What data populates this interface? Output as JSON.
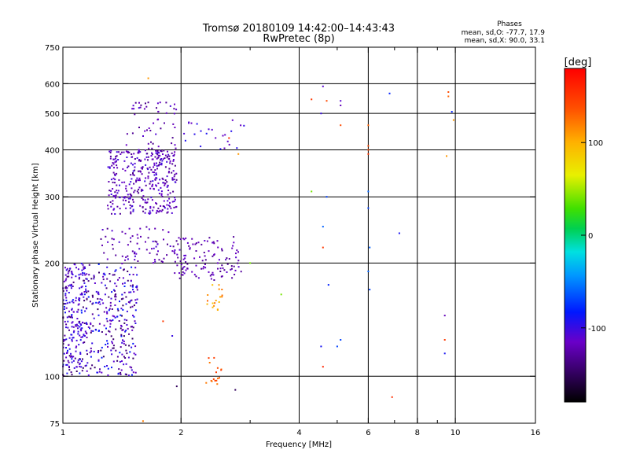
{
  "chart_data": {
    "type": "scatter",
    "title": "Tromsø 20180109 14:42:00–14:43:43",
    "subtitle": "RwPretec (8p)",
    "phases_title": "Phases",
    "phases_o": "mean, sd,O: -77.7, 17.9",
    "phases_x": "mean, sd,X:  90.0, 33.1",
    "xlabel": "Frequency [MHz]",
    "ylabel": "Stationary phase Virtual Height [km]",
    "x_scale": "log",
    "y_scale": "log",
    "xlim": [
      1,
      16
    ],
    "ylim": [
      75,
      750
    ],
    "x_ticks": [
      1,
      2,
      4,
      6,
      8,
      10,
      16
    ],
    "x_tick_labels": [
      "1",
      "2",
      "4",
      "6",
      "8",
      "10",
      "16"
    ],
    "x_minor_ticks": [
      3,
      5,
      7,
      9
    ],
    "x_grid": [
      2,
      4,
      6,
      8,
      10
    ],
    "y_ticks": [
      75,
      100,
      200,
      300,
      400,
      500,
      600,
      750
    ],
    "y_tick_labels": [
      "75",
      "100",
      "200",
      "300",
      "400",
      "500",
      "600",
      "750"
    ],
    "y_grid": [
      100,
      200,
      300,
      400,
      500,
      600
    ],
    "grid": true,
    "colorbar": {
      "label": "[deg]",
      "min": -180,
      "max": 180,
      "ticks": [
        100,
        0,
        -100
      ],
      "tick_labels": [
        "100",
        "0",
        "-100"
      ]
    },
    "clusters": [
      {
        "f": [
          1.0,
          1.55
        ],
        "h": [
          100,
          200
        ],
        "phase": [
          -150,
          -80
        ],
        "n": 420
      },
      {
        "f": [
          1.0,
          1.15
        ],
        "h": [
          105,
          200
        ],
        "phase": [
          -115,
          -95
        ],
        "n": 110
      },
      {
        "f": [
          1.3,
          1.95
        ],
        "h": [
          270,
          400
        ],
        "phase": [
          -135,
          -100
        ],
        "n": 360
      },
      {
        "f": [
          1.45,
          1.95
        ],
        "h": [
          380,
          540
        ],
        "phase": [
          -135,
          -105
        ],
        "n": 60
      },
      {
        "f": [
          1.25,
          1.9
        ],
        "h": [
          200,
          250
        ],
        "phase": [
          -135,
          -105
        ],
        "n": 70
      },
      {
        "f": [
          1.9,
          2.85
        ],
        "h": [
          180,
          235
        ],
        "phase": [
          -135,
          -110
        ],
        "n": 120
      },
      {
        "f": [
          2.3,
          2.55
        ],
        "h": [
          150,
          175
        ],
        "phase": [
          90,
          130
        ],
        "n": 18
      },
      {
        "f": [
          2.3,
          2.55
        ],
        "h": [
          93,
          112
        ],
        "phase": [
          120,
          150
        ],
        "n": 16
      },
      {
        "f": [
          2.0,
          2.9
        ],
        "h": [
          400,
          480
        ],
        "phase": [
          -120,
          -90
        ],
        "n": 24
      }
    ],
    "points": [
      {
        "f": 1.65,
        "h": 620,
        "phase": 110
      },
      {
        "f": 2.65,
        "h": 430,
        "phase": 155
      },
      {
        "f": 3.0,
        "h": 200,
        "phase": 40
      },
      {
        "f": 3.6,
        "h": 165,
        "phase": 40
      },
      {
        "f": 4.3,
        "h": 545,
        "phase": 150
      },
      {
        "f": 4.6,
        "h": 590,
        "phase": -110
      },
      {
        "f": 4.55,
        "h": 500,
        "phase": -100
      },
      {
        "f": 4.7,
        "h": 540,
        "phase": 140
      },
      {
        "f": 5.1,
        "h": 540,
        "phase": -110
      },
      {
        "f": 5.1,
        "h": 525,
        "phase": -120
      },
      {
        "f": 5.1,
        "h": 465,
        "phase": 140
      },
      {
        "f": 4.3,
        "h": 310,
        "phase": 40
      },
      {
        "f": 4.7,
        "h": 300,
        "phase": -70
      },
      {
        "f": 4.6,
        "h": 250,
        "phase": -60
      },
      {
        "f": 4.6,
        "h": 220,
        "phase": 150
      },
      {
        "f": 4.75,
        "h": 175,
        "phase": -80
      },
      {
        "f": 4.55,
        "h": 120,
        "phase": -90
      },
      {
        "f": 4.6,
        "h": 106,
        "phase": 160
      },
      {
        "f": 5.0,
        "h": 120,
        "phase": -70
      },
      {
        "f": 5.1,
        "h": 125,
        "phase": -70
      },
      {
        "f": 6.0,
        "h": 465,
        "phase": 130
      },
      {
        "f": 6.0,
        "h": 410,
        "phase": 140
      },
      {
        "f": 6.0,
        "h": 400,
        "phase": 140
      },
      {
        "f": 6.0,
        "h": 390,
        "phase": 150
      },
      {
        "f": 6.0,
        "h": 310,
        "phase": -60
      },
      {
        "f": 6.0,
        "h": 280,
        "phase": -70
      },
      {
        "f": 6.05,
        "h": 220,
        "phase": -60
      },
      {
        "f": 6.0,
        "h": 190,
        "phase": -60
      },
      {
        "f": 6.05,
        "h": 170,
        "phase": -70
      },
      {
        "f": 6.8,
        "h": 565,
        "phase": -80
      },
      {
        "f": 7.2,
        "h": 240,
        "phase": -90
      },
      {
        "f": 6.9,
        "h": 88,
        "phase": 155
      },
      {
        "f": 9.6,
        "h": 570,
        "phase": 140
      },
      {
        "f": 9.6,
        "h": 555,
        "phase": 130
      },
      {
        "f": 9.8,
        "h": 505,
        "phase": -80
      },
      {
        "f": 9.9,
        "h": 480,
        "phase": 110
      },
      {
        "f": 9.5,
        "h": 385,
        "phase": 110
      },
      {
        "f": 9.4,
        "h": 145,
        "phase": -120
      },
      {
        "f": 9.4,
        "h": 125,
        "phase": 150
      },
      {
        "f": 9.4,
        "h": 115,
        "phase": -90
      },
      {
        "f": 1.95,
        "h": 94,
        "phase": -150
      },
      {
        "f": 1.8,
        "h": 140,
        "phase": 150
      },
      {
        "f": 1.9,
        "h": 128,
        "phase": -100
      },
      {
        "f": 1.6,
        "h": 76,
        "phase": 120
      },
      {
        "f": 2.75,
        "h": 92,
        "phase": -150
      },
      {
        "f": 2.8,
        "h": 390,
        "phase": 110
      }
    ]
  }
}
